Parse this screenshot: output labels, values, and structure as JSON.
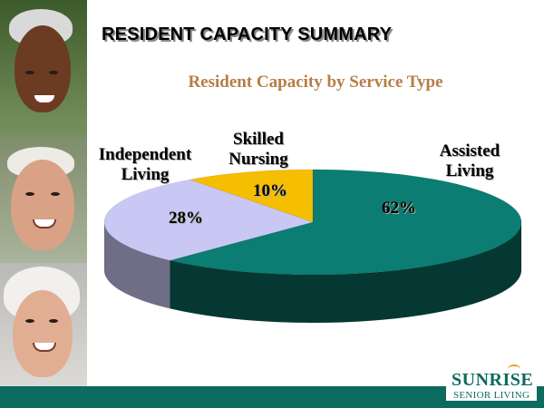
{
  "slide": {
    "title": "RESIDENT CAPACITY SUMMARY"
  },
  "logo": {
    "brand": "SUNRISE",
    "tagline": "SENIOR LIVING"
  },
  "colors": {
    "assisted": "#0b7d72",
    "independent": "#c9c8f4",
    "skilled": "#f6be00",
    "bottom_bar": "#0d6a5e",
    "chart_title": "#b57e45"
  },
  "chart_data": {
    "type": "pie",
    "title": "Resident Capacity by Service Type",
    "categories": [
      "Assisted Living",
      "Independent Living",
      "Skilled Nursing"
    ],
    "values": [
      62,
      28,
      10
    ],
    "unit": "%",
    "data_labels": [
      "62%",
      "28%",
      "10%"
    ],
    "slice_labels": {
      "assisted": [
        "Assisted",
        "Living"
      ],
      "independent": [
        "Independent",
        "Living"
      ],
      "skilled": [
        "Skilled",
        "Nursing"
      ]
    },
    "style": "3d"
  }
}
